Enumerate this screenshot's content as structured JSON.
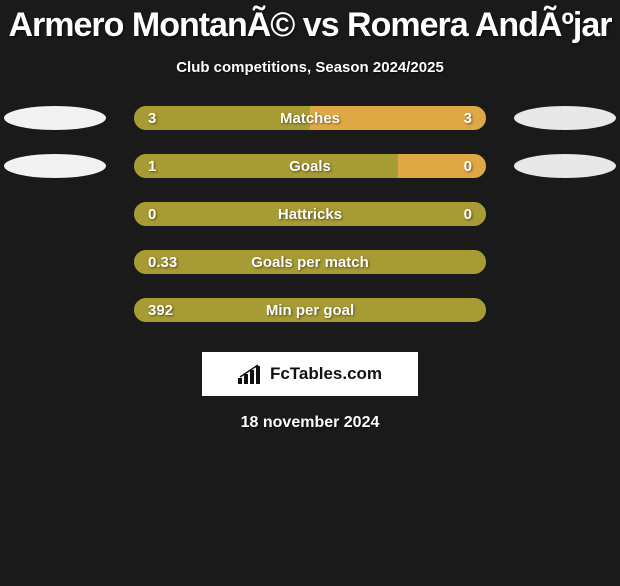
{
  "title": "Armero MontanÃ© vs Romera AndÃºjar",
  "subtitle": "Club competitions, Season 2024/2025",
  "brand": "FcTables.com",
  "date": "18 november 2024",
  "colors": {
    "background": "#1a1a1a",
    "left_fill": "#a79b33",
    "right_fill": "#e0a845",
    "neutral_fill": "#9e9230",
    "ellipse_left": "#f2f2f2",
    "ellipse_right": "#e8e8e8",
    "track": "#a79b33"
  },
  "rows": [
    {
      "label": "Matches",
      "left_value": "3",
      "right_value": "3",
      "left_pct": 50,
      "right_pct": 50,
      "show_ellipses": true
    },
    {
      "label": "Goals",
      "left_value": "1",
      "right_value": "0",
      "left_pct": 75,
      "right_pct": 25,
      "show_ellipses": true
    },
    {
      "label": "Hattricks",
      "left_value": "0",
      "right_value": "0",
      "left_pct": 100,
      "right_pct": 0,
      "show_ellipses": false
    },
    {
      "label": "Goals per match",
      "left_value": "0.33",
      "right_value": "",
      "left_pct": 100,
      "right_pct": 0,
      "show_ellipses": false
    },
    {
      "label": "Min per goal",
      "left_value": "392",
      "right_value": "",
      "left_pct": 100,
      "right_pct": 0,
      "show_ellipses": false
    }
  ]
}
